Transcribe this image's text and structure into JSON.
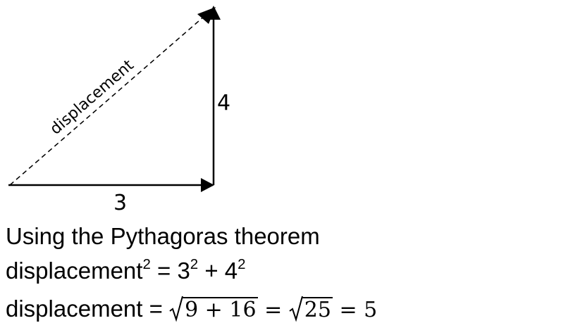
{
  "diagram": {
    "hypotenuse_label": "displacement",
    "vertical_label": "4",
    "horizontal_label": "3",
    "color": "#000000"
  },
  "text": {
    "line1": "Using the Pythagoras theorem",
    "line2": {
      "term": "displacement",
      "term_exp": "2",
      "eq": " = ",
      "a": "3",
      "a_exp": "2",
      "plus": " + ",
      "b": "4",
      "b_exp": "2"
    },
    "line3": {
      "lhs": "displacement = ",
      "radicand1": "9 + 16",
      "eq1": " = ",
      "radicand2": "25",
      "eq2": " = ",
      "result": "5"
    }
  }
}
